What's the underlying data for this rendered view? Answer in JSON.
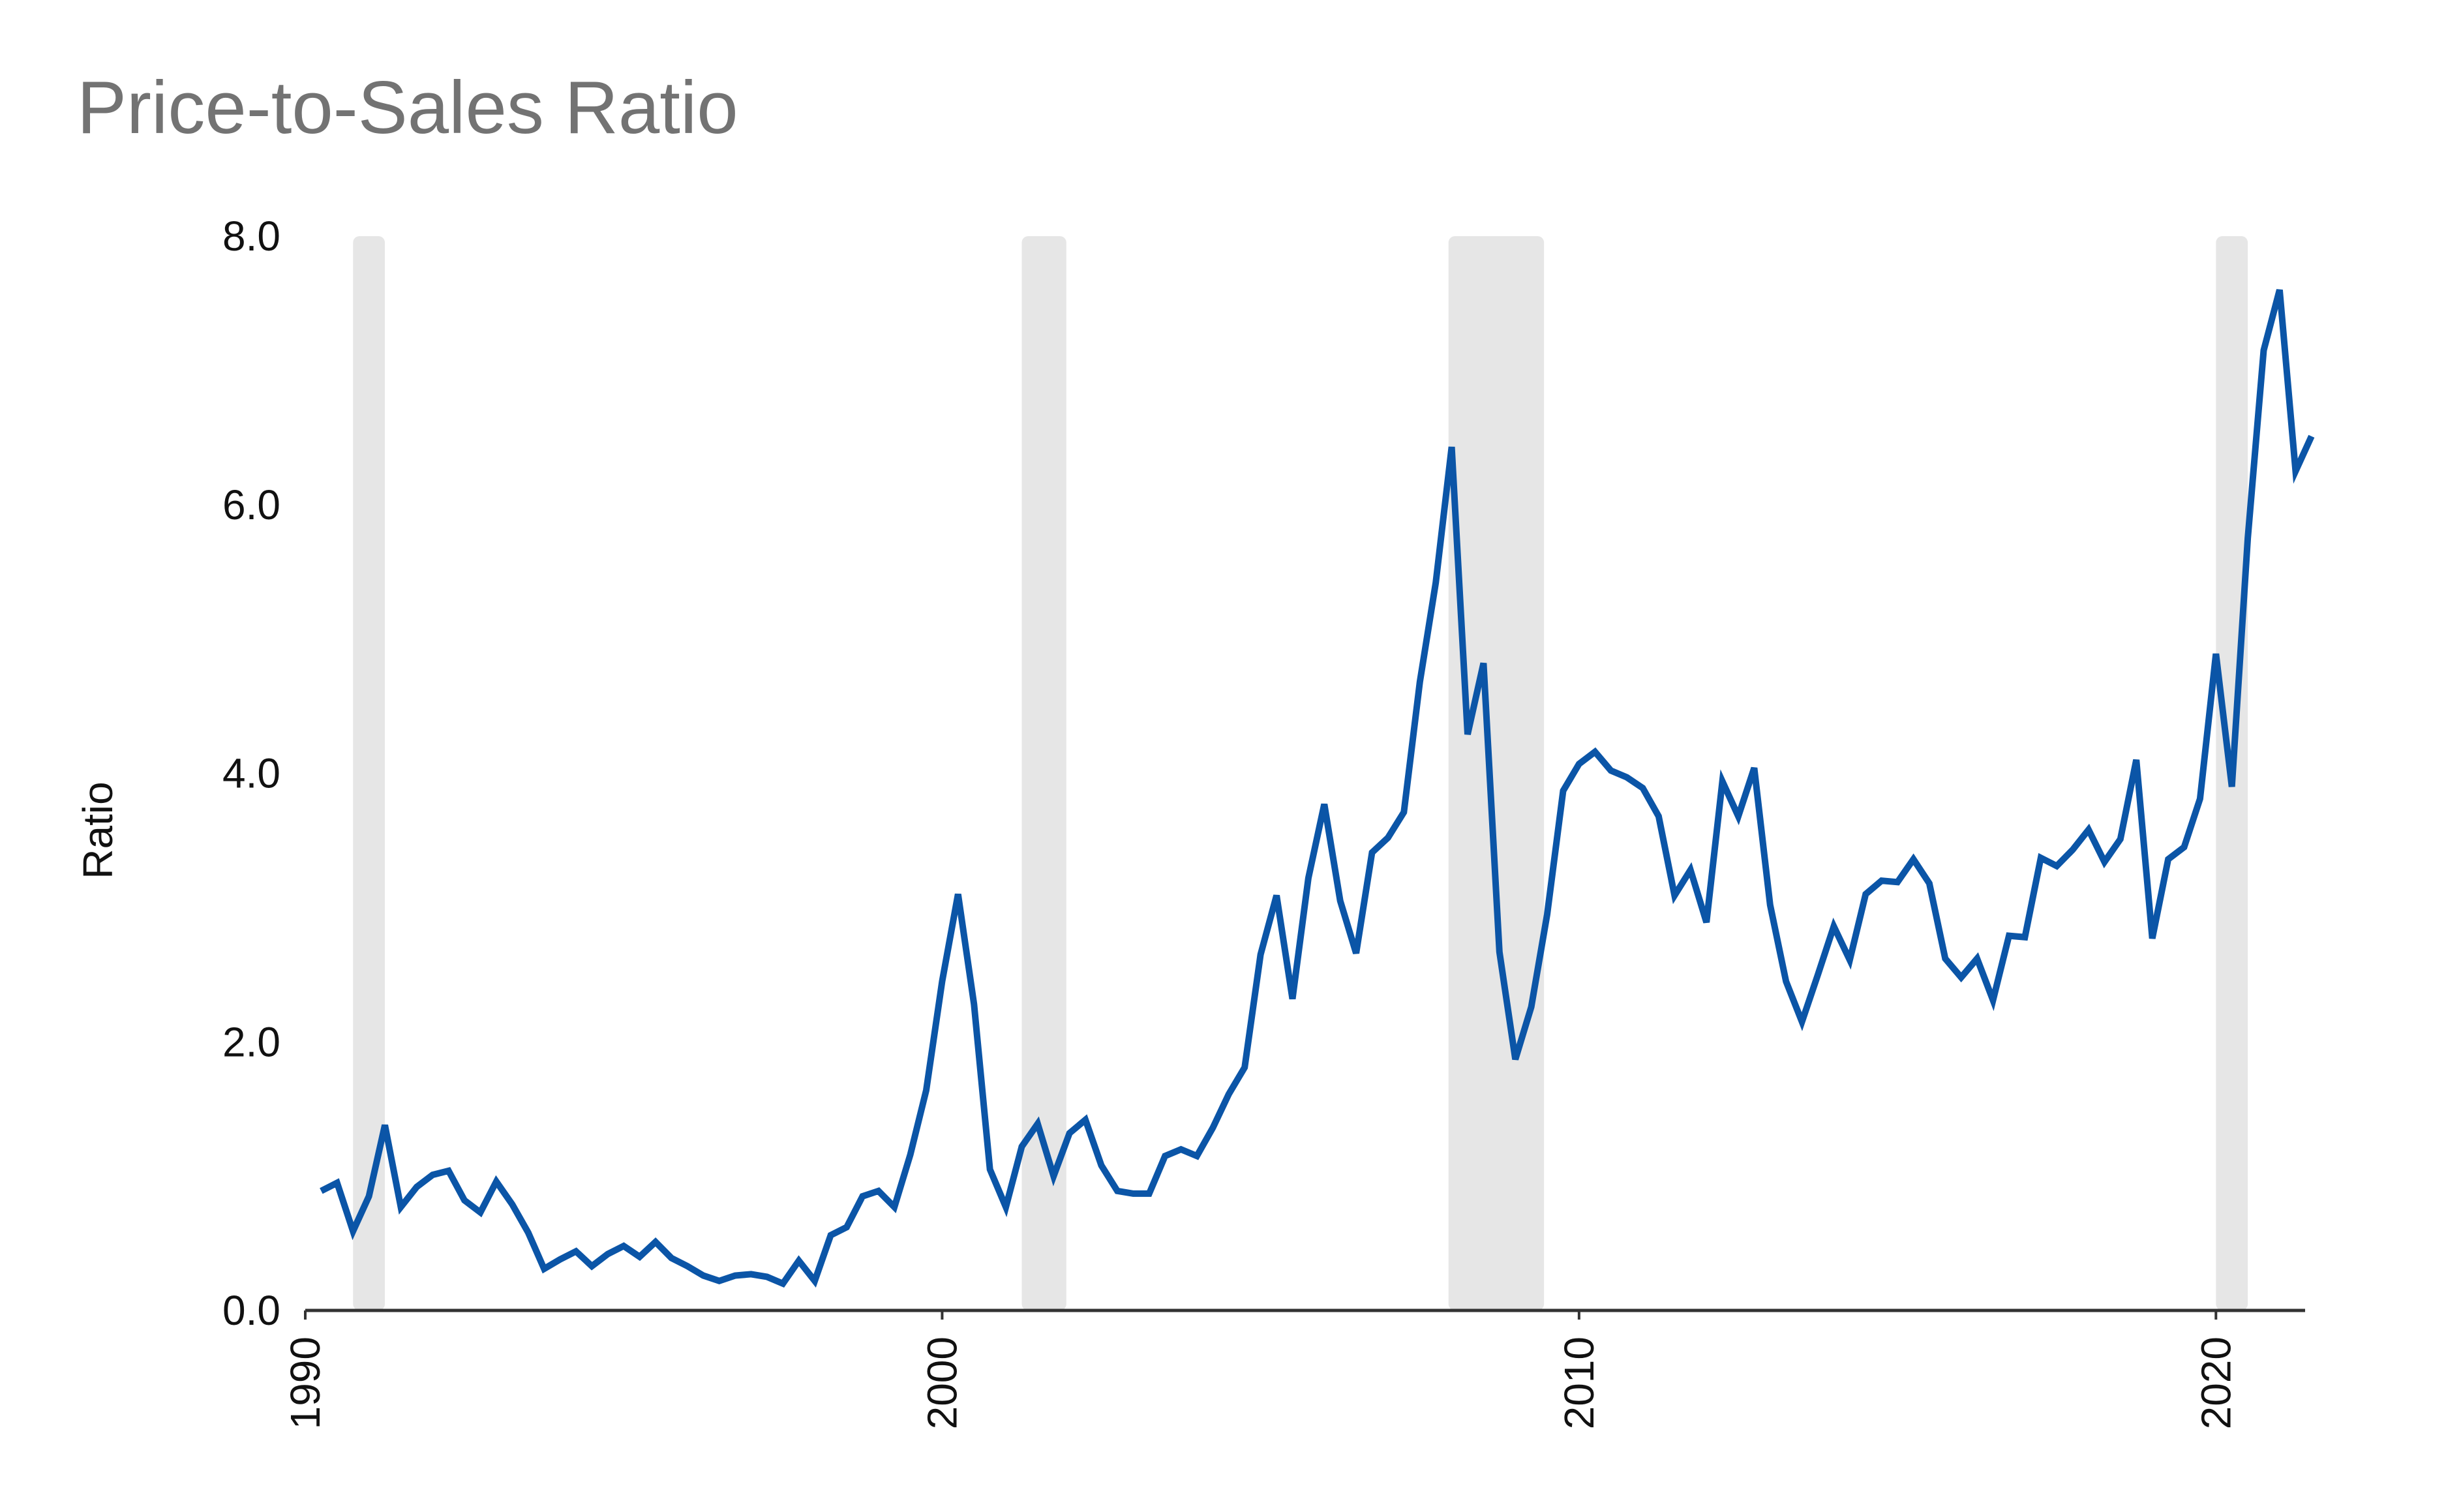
{
  "chart_data": {
    "type": "line",
    "title": "Price-to-Sales Ratio",
    "xlabel": "",
    "ylabel": "Ratio",
    "xlim": [
      1990.0,
      2021.4
    ],
    "ylim": [
      0,
      8
    ],
    "x_ticks": [
      1990,
      2000,
      2010,
      2020
    ],
    "x_tick_labels": [
      "1990",
      "2000",
      "2010",
      "2020"
    ],
    "y_ticks": [
      0,
      2,
      4,
      6,
      8
    ],
    "y_tick_labels": [
      "0.0",
      "2.0",
      "4.0",
      "6.0",
      "8.0"
    ],
    "grid": false,
    "legend": "none",
    "recessions": [
      [
        1990.75,
        1991.25
      ],
      [
        2001.25,
        2001.95
      ],
      [
        2007.95,
        2009.45
      ],
      [
        2020.0,
        2020.5
      ]
    ],
    "colors": {
      "line": "#0b55a7",
      "recession": "#e6e6e6",
      "axis": "#333333",
      "title": "#737373"
    },
    "series": [
      {
        "x": [
          1990.25,
          1990.5,
          1990.75,
          1991.0,
          1991.25,
          1991.5,
          1991.75,
          1992.0,
          1992.25,
          1992.5,
          1992.75,
          1993.0,
          1993.25,
          1993.5,
          1993.75,
          1994.0,
          1994.25,
          1994.5,
          1994.75,
          1995.0,
          1995.25,
          1995.5,
          1995.75,
          1996.0,
          1996.25,
          1996.5,
          1996.75,
          1997.0,
          1997.25,
          1997.5,
          1997.75,
          1998.0,
          1998.25,
          1998.5,
          1998.75,
          1999.0,
          1999.25,
          1999.5,
          1999.75,
          2000.0,
          2000.25,
          2000.5,
          2000.75,
          2001.0,
          2001.25,
          2001.5,
          2001.75,
          2002.0,
          2002.25,
          2002.5,
          2002.75,
          2003.0,
          2003.25,
          2003.5,
          2003.75,
          2004.0,
          2004.25,
          2004.5,
          2004.75,
          2005.0,
          2005.25,
          2005.5,
          2005.75,
          2006.0,
          2006.25,
          2006.5,
          2006.75,
          2007.0,
          2007.25,
          2007.5,
          2007.75,
          2008.0,
          2008.25,
          2008.5,
          2008.75,
          2009.0,
          2009.25,
          2009.5,
          2009.75,
          2010.0,
          2010.25,
          2010.5,
          2010.75,
          2011.0,
          2011.25,
          2011.5,
          2011.75,
          2012.0,
          2012.25,
          2012.5,
          2012.75,
          2013.0,
          2013.25,
          2013.5,
          2013.75,
          2014.0,
          2014.25,
          2014.5,
          2014.75,
          2015.0,
          2015.25,
          2015.5,
          2015.75,
          2016.0,
          2016.25,
          2016.5,
          2016.75,
          2017.0,
          2017.25,
          2017.5,
          2017.75,
          2018.0,
          2018.25,
          2018.5,
          2018.75,
          2019.0,
          2019.25,
          2019.5,
          2019.75,
          2020.0,
          2020.25,
          2020.5,
          2020.75,
          2021.0,
          2021.25,
          2021.5
        ],
        "values": [
          0.89,
          0.95,
          0.59,
          0.85,
          1.38,
          0.77,
          0.92,
          1.01,
          1.04,
          0.82,
          0.73,
          0.96,
          0.79,
          0.58,
          0.31,
          0.38,
          0.44,
          0.33,
          0.42,
          0.48,
          0.4,
          0.51,
          0.39,
          0.33,
          0.26,
          0.22,
          0.26,
          0.27,
          0.25,
          0.2,
          0.37,
          0.22,
          0.56,
          0.62,
          0.85,
          0.89,
          0.77,
          1.16,
          1.64,
          2.45,
          3.1,
          2.28,
          1.05,
          0.77,
          1.22,
          1.39,
          1.0,
          1.32,
          1.42,
          1.08,
          0.89,
          0.87,
          0.87,
          1.15,
          1.2,
          1.15,
          1.36,
          1.61,
          1.81,
          2.65,
          3.09,
          2.32,
          3.22,
          3.77,
          3.05,
          2.66,
          3.41,
          3.52,
          3.71,
          4.68,
          5.42,
          6.43,
          4.29,
          4.82,
          2.67,
          1.87,
          2.26,
          2.95,
          3.87,
          4.07,
          4.16,
          4.02,
          3.97,
          3.89,
          3.68,
          3.09,
          3.28,
          2.89,
          3.94,
          3.68,
          4.04,
          3.02,
          2.45,
          2.15,
          2.5,
          2.86,
          2.61,
          3.1,
          3.2,
          3.19,
          3.36,
          3.18,
          2.62,
          2.48,
          2.62,
          2.31,
          2.79,
          2.78,
          3.37,
          3.31,
          3.43,
          3.58,
          3.34,
          3.51,
          4.1,
          2.77,
          3.36,
          3.45,
          3.81,
          4.89,
          3.9,
          5.75,
          7.15,
          7.6,
          6.25,
          6.51
        ]
      }
    ]
  }
}
